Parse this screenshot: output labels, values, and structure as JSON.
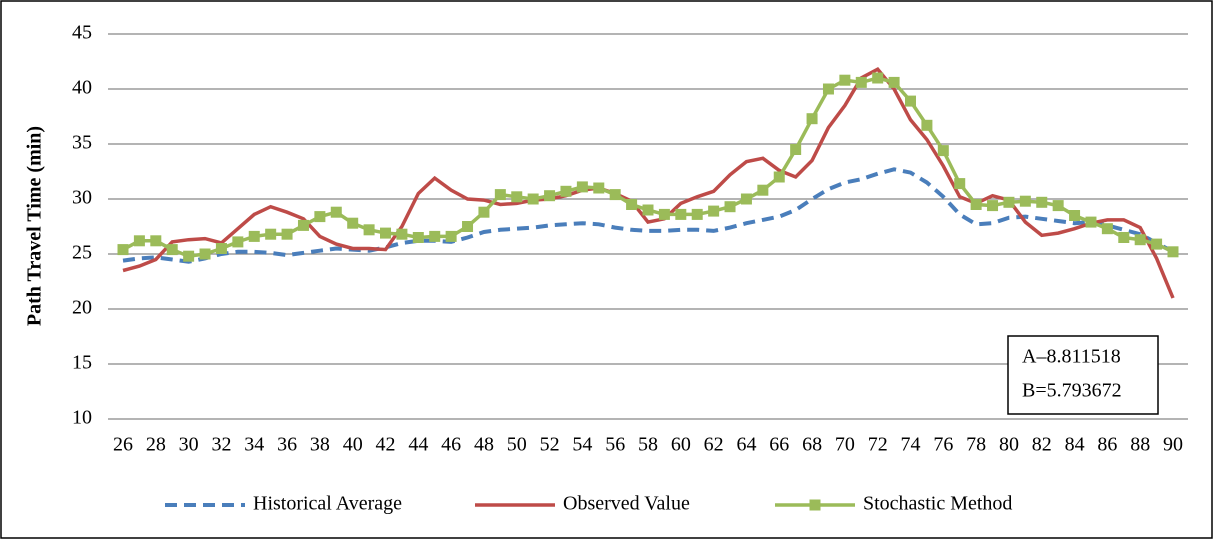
{
  "chart_data": {
    "type": "line",
    "ylabel": "Path Travel  Time (min)",
    "x": [
      26,
      27,
      28,
      29,
      30,
      31,
      32,
      33,
      34,
      35,
      36,
      37,
      38,
      39,
      40,
      41,
      42,
      43,
      44,
      45,
      46,
      47,
      48,
      49,
      50,
      51,
      52,
      53,
      54,
      55,
      56,
      57,
      58,
      59,
      60,
      61,
      62,
      63,
      64,
      65,
      66,
      67,
      68,
      69,
      70,
      71,
      72,
      73,
      74,
      75,
      76,
      77,
      78,
      79,
      80,
      81,
      82,
      83,
      84,
      85,
      86,
      87,
      88,
      89,
      90
    ],
    "xlim": [
      26,
      90
    ],
    "xticks": [
      26,
      28,
      30,
      32,
      34,
      36,
      38,
      40,
      42,
      44,
      46,
      48,
      50,
      52,
      54,
      56,
      58,
      60,
      62,
      64,
      66,
      68,
      70,
      72,
      74,
      76,
      78,
      80,
      82,
      84,
      86,
      88,
      90
    ],
    "ylim": [
      10,
      45
    ],
    "yticks": [
      10,
      15,
      20,
      25,
      30,
      35,
      40,
      45
    ],
    "grid": true,
    "legend": "bottom",
    "annotations": [
      "A–8.811518",
      "B=5.793672"
    ],
    "series": [
      {
        "name": "Historical Average",
        "color": "#4a7ebb",
        "style": "dashed",
        "marker": "none",
        "values": [
          24.4,
          24.6,
          24.7,
          24.5,
          24.3,
          24.6,
          25.0,
          25.2,
          25.2,
          25.1,
          24.9,
          25.1,
          25.3,
          25.5,
          25.4,
          25.3,
          25.6,
          26.0,
          26.2,
          26.2,
          26.1,
          26.5,
          27.0,
          27.2,
          27.3,
          27.4,
          27.6,
          27.7,
          27.8,
          27.7,
          27.4,
          27.2,
          27.1,
          27.1,
          27.2,
          27.2,
          27.1,
          27.4,
          27.8,
          28.1,
          28.4,
          29.0,
          30.0,
          30.9,
          31.5,
          31.8,
          32.3,
          32.7,
          32.4,
          31.5,
          30.2,
          28.6,
          27.7,
          27.8,
          28.3,
          28.4,
          28.2,
          28.0,
          27.8,
          27.9,
          27.6,
          27.2,
          26.8,
          26.0,
          25.2
        ]
      },
      {
        "name": "Observed Value",
        "color": "#be4b48",
        "style": "solid",
        "marker": "none",
        "values": [
          23.5,
          23.9,
          24.5,
          26.1,
          26.3,
          26.4,
          26.0,
          27.3,
          28.6,
          29.3,
          28.8,
          28.2,
          26.6,
          25.9,
          25.5,
          25.5,
          25.4,
          27.5,
          30.5,
          31.9,
          30.8,
          30.0,
          29.9,
          29.5,
          29.6,
          29.9,
          30.0,
          30.3,
          30.8,
          31.0,
          30.5,
          29.8,
          27.9,
          28.2,
          29.6,
          30.2,
          30.7,
          32.2,
          33.4,
          33.7,
          32.6,
          32.0,
          33.5,
          36.5,
          38.5,
          41.0,
          41.8,
          40.0,
          37.2,
          35.4,
          33.0,
          30.2,
          29.6,
          30.3,
          29.9,
          27.9,
          26.7,
          26.9,
          27.3,
          27.8,
          28.1,
          28.1,
          27.4,
          24.6,
          21.0
        ]
      },
      {
        "name": "Stochastic Method",
        "color": "#9bbb59",
        "style": "solid",
        "marker": "square",
        "values": [
          25.4,
          26.2,
          26.2,
          25.4,
          24.8,
          25.0,
          25.5,
          26.1,
          26.6,
          26.8,
          26.8,
          27.6,
          28.4,
          28.8,
          27.8,
          27.2,
          26.9,
          26.8,
          26.5,
          26.6,
          26.6,
          27.5,
          28.8,
          30.4,
          30.2,
          30.0,
          30.3,
          30.7,
          31.1,
          31.0,
          30.4,
          29.5,
          29.0,
          28.6,
          28.6,
          28.6,
          28.9,
          29.3,
          30.0,
          30.8,
          32.0,
          34.5,
          37.3,
          40.0,
          40.8,
          40.6,
          41.0,
          40.6,
          38.9,
          36.7,
          34.4,
          31.4,
          29.5,
          29.4,
          29.7,
          29.8,
          29.7,
          29.4,
          28.5,
          27.9,
          27.3,
          26.5,
          26.3,
          25.9,
          25.2
        ]
      }
    ]
  }
}
